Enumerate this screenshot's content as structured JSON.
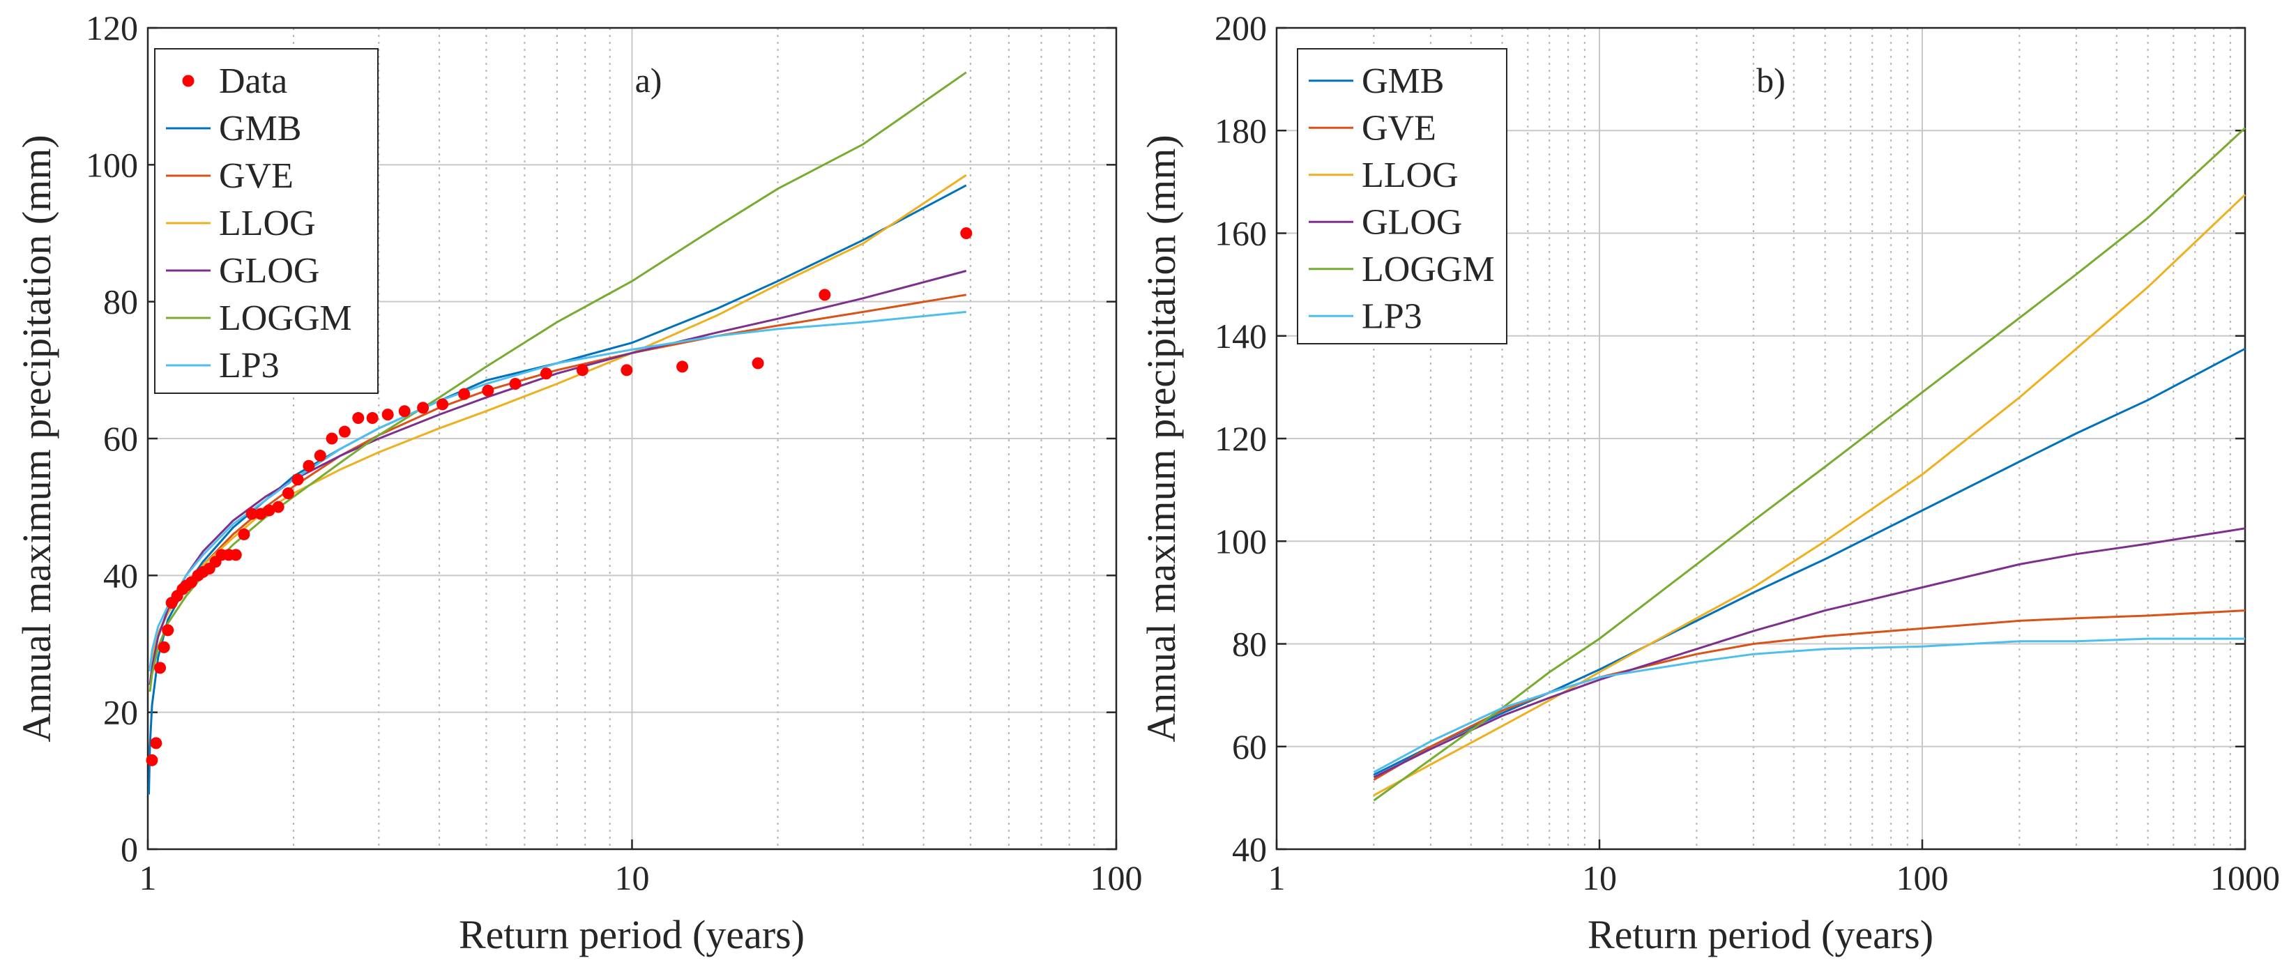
{
  "chart_data": [
    {
      "type": "line",
      "panel_label": "a)",
      "xscale": "log",
      "xlim": [
        1,
        100
      ],
      "ylim": [
        0,
        120
      ],
      "xticks": [
        1,
        10,
        100
      ],
      "xtick_labels": [
        "1",
        "10",
        "100"
      ],
      "yticks": [
        0,
        20,
        40,
        60,
        80,
        100,
        120
      ],
      "ytick_labels": [
        "0",
        "20",
        "40",
        "60",
        "80",
        "100",
        "120"
      ],
      "xlabel": "Return period (years)",
      "ylabel": "Annual maximum precipitation (mm)",
      "grid": true,
      "legend_position": "top-left",
      "scatter": {
        "name": "Data",
        "color": "#ff0000",
        "x": [
          1.02,
          1.04,
          1.06,
          1.08,
          1.1,
          1.12,
          1.15,
          1.18,
          1.2,
          1.23,
          1.27,
          1.3,
          1.34,
          1.38,
          1.42,
          1.47,
          1.52,
          1.58,
          1.64,
          1.71,
          1.78,
          1.86,
          1.95,
          2.04,
          2.15,
          2.27,
          2.4,
          2.55,
          2.72,
          2.91,
          3.13,
          3.39,
          3.7,
          4.06,
          4.5,
          5.04,
          5.74,
          6.65,
          7.9,
          9.75,
          12.7,
          18.2,
          25.0,
          49.0
        ],
        "y": [
          13,
          15.5,
          26.5,
          29.5,
          32,
          36,
          37,
          38,
          38.5,
          39,
          40,
          40.5,
          41,
          42,
          43,
          43,
          43,
          46,
          49,
          49,
          49.5,
          50,
          52,
          54,
          56,
          57.5,
          60,
          61,
          63,
          63,
          63.5,
          64,
          64.5,
          65,
          66.5,
          67,
          68,
          69.5,
          70,
          70,
          70.5,
          71,
          81,
          90
        ]
      },
      "series": [
        {
          "name": "GMB",
          "color": "#0072bd",
          "x": [
            1.005,
            1.01,
            1.02,
            1.05,
            1.1,
            1.2,
            1.3,
            1.5,
            1.75,
            2,
            2.5,
            3,
            4,
            5,
            7,
            10,
            15,
            20,
            30,
            49
          ],
          "y": [
            8,
            15,
            21,
            28,
            33.5,
            38.5,
            42,
            47,
            51,
            54.5,
            58.5,
            61.5,
            65.5,
            68.5,
            71,
            74,
            79,
            83,
            89,
            97
          ]
        },
        {
          "name": "GVE",
          "color": "#d95319",
          "x": [
            1.01,
            1.02,
            1.05,
            1.1,
            1.2,
            1.3,
            1.5,
            1.75,
            2,
            2.5,
            3,
            4,
            5,
            7,
            10,
            15,
            20,
            30,
            49
          ],
          "y": [
            26.5,
            28.5,
            31.5,
            34.5,
            38.5,
            41.5,
            46,
            50,
            53,
            57.5,
            60.5,
            64.5,
            67,
            70,
            72.5,
            75,
            76.5,
            78.5,
            81
          ]
        },
        {
          "name": "LLOG",
          "color": "#edb120",
          "x": [
            1.01,
            1.02,
            1.05,
            1.1,
            1.2,
            1.3,
            1.5,
            1.75,
            2,
            2.5,
            3,
            4,
            5,
            7,
            10,
            15,
            20,
            30,
            49
          ],
          "y": [
            26,
            28,
            31.5,
            34.5,
            38.5,
            41.5,
            45.5,
            49.5,
            52,
            55.5,
            58,
            61.5,
            64,
            68,
            72.5,
            78,
            82.5,
            88.5,
            98.5
          ]
        },
        {
          "name": "GLOG",
          "color": "#7e2f8e",
          "x": [
            1.01,
            1.02,
            1.05,
            1.1,
            1.2,
            1.3,
            1.5,
            1.75,
            2,
            2.5,
            3,
            4,
            5,
            7,
            10,
            15,
            20,
            30,
            49
          ],
          "y": [
            24,
            26.5,
            31,
            35,
            40,
            43.5,
            48,
            51.5,
            54,
            57.5,
            60,
            63.5,
            66,
            69.5,
            72.5,
            75.5,
            77.5,
            80.5,
            84.5
          ]
        },
        {
          "name": "LOGGM",
          "color": "#77ac30",
          "x": [
            1.01,
            1.02,
            1.05,
            1.1,
            1.2,
            1.3,
            1.5,
            1.75,
            2,
            2.5,
            3,
            4,
            5,
            7,
            10,
            15,
            20,
            30,
            49
          ],
          "y": [
            23,
            25.5,
            29.5,
            33,
            37,
            40,
            44.5,
            48.5,
            51.5,
            56.5,
            60.5,
            66,
            70.5,
            77,
            83,
            91,
            96.5,
            103,
            113.5
          ]
        },
        {
          "name": "LP3",
          "color": "#4dbeee",
          "x": [
            1.01,
            1.02,
            1.05,
            1.1,
            1.2,
            1.3,
            1.5,
            1.75,
            2,
            2.5,
            3,
            4,
            5,
            7,
            10,
            15,
            20,
            30,
            49
          ],
          "y": [
            26,
            29,
            32.5,
            35.5,
            40,
            43,
            47.5,
            51,
            54,
            58.5,
            61.5,
            65.5,
            68,
            71,
            73,
            75,
            76,
            77,
            78.5
          ]
        }
      ]
    },
    {
      "type": "line",
      "panel_label": "b)",
      "xscale": "log",
      "xlim": [
        1,
        1000
      ],
      "ylim": [
        40,
        200
      ],
      "xticks": [
        1,
        10,
        100,
        1000
      ],
      "xtick_labels": [
        "1",
        "10",
        "100",
        "1000"
      ],
      "yticks": [
        40,
        60,
        80,
        100,
        120,
        140,
        160,
        180,
        200
      ],
      "ytick_labels": [
        "40",
        "60",
        "80",
        "100",
        "120",
        "140",
        "160",
        "180",
        "200"
      ],
      "xlabel": "Return period (years)",
      "ylabel": "Annual maximum precipitation (mm)",
      "grid": true,
      "legend_position": "top-left",
      "series": [
        {
          "name": "GMB",
          "color": "#0072bd",
          "x": [
            2,
            3,
            5,
            7,
            10,
            20,
            30,
            50,
            100,
            200,
            300,
            500,
            1000
          ],
          "y": [
            54.5,
            60,
            66.5,
            70.5,
            75,
            84.5,
            90,
            96.5,
            106,
            115.5,
            121,
            127.5,
            137.5
          ]
        },
        {
          "name": "GVE",
          "color": "#d95319",
          "x": [
            2,
            3,
            5,
            7,
            10,
            20,
            30,
            50,
            100,
            200,
            300,
            500,
            1000
          ],
          "y": [
            53.5,
            60,
            67,
            70.5,
            73.5,
            78,
            80,
            81.5,
            83,
            84.5,
            85,
            85.5,
            86.5
          ]
        },
        {
          "name": "LLOG",
          "color": "#edb120",
          "x": [
            2,
            3,
            5,
            7,
            10,
            20,
            30,
            50,
            100,
            200,
            300,
            500,
            1000
          ],
          "y": [
            50.5,
            56.5,
            64,
            69,
            74.5,
            85,
            91,
            100,
            113,
            128,
            137.5,
            149.5,
            167.5
          ]
        },
        {
          "name": "GLOG",
          "color": "#7e2f8e",
          "x": [
            2,
            3,
            5,
            7,
            10,
            20,
            30,
            50,
            100,
            200,
            300,
            500,
            1000
          ],
          "y": [
            54,
            59.5,
            66,
            69.5,
            73,
            79,
            82.5,
            86.5,
            91,
            95.5,
            97.5,
            99.5,
            102.5
          ]
        },
        {
          "name": "LOGGM",
          "color": "#77ac30",
          "x": [
            2,
            3,
            5,
            7,
            10,
            20,
            30,
            50,
            100,
            200,
            300,
            500,
            1000
          ],
          "y": [
            49.5,
            57.5,
            67.5,
            74.5,
            81,
            95.5,
            104,
            114.5,
            129,
            143.5,
            152,
            163,
            180.5
          ]
        },
        {
          "name": "LP3",
          "color": "#4dbeee",
          "x": [
            2,
            3,
            5,
            7,
            10,
            20,
            30,
            50,
            100,
            200,
            300,
            500,
            1000
          ],
          "y": [
            55,
            61,
            67.5,
            70.5,
            73.5,
            76.5,
            78,
            79,
            79.5,
            80.5,
            80.5,
            81,
            81
          ]
        }
      ]
    }
  ]
}
